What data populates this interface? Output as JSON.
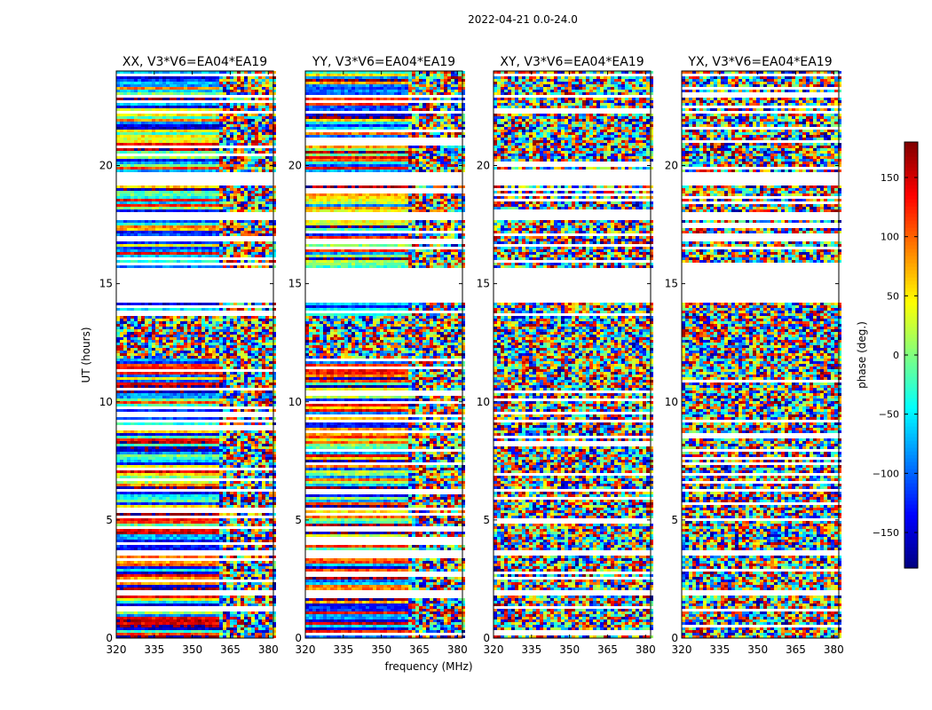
{
  "figure": {
    "suptitle": "2022-04-21 0.0-24.0",
    "ylabel": "UT (hours)",
    "xlabel": "frequency (MHz)"
  },
  "chart_data": {
    "type": "heatmap",
    "x_axis": {
      "label": "frequency (MHz)",
      "range": [
        320,
        382
      ],
      "ticks": [
        320,
        335,
        350,
        365,
        380
      ]
    },
    "y_axis": {
      "label": "UT (hours)",
      "range": [
        0,
        24
      ],
      "ticks": [
        0,
        5,
        10,
        15,
        20
      ]
    },
    "panels": [
      {
        "title": "XX, V3*V6=EA04*EA19"
      },
      {
        "title": "YY, V3*V6=EA04*EA19"
      },
      {
        "title": "XY, V3*V6=EA04*EA19"
      },
      {
        "title": "YX, V3*V6=EA04*EA19"
      }
    ],
    "colorbar": {
      "label": "phase (deg.)",
      "range": [
        -180,
        180
      ],
      "ticks": [
        -150,
        -100,
        -50,
        0,
        50,
        100,
        150
      ],
      "colormap": "jet",
      "colors": [
        "#00007f",
        "#0000ff",
        "#007fff",
        "#00ffff",
        "#7fff7f",
        "#ffff00",
        "#ff7f00",
        "#ff0000",
        "#7f0000"
      ]
    },
    "blank_time_ranges": [
      [
        1.9,
        2.05
      ],
      [
        3.55,
        3.75
      ],
      [
        6.2,
        6.35
      ],
      [
        14.3,
        15.7
      ],
      [
        17.75,
        18.1
      ],
      [
        19.2,
        19.75
      ],
      [
        22.2,
        22.4
      ],
      [
        22.9,
        23.05
      ]
    ],
    "dense_time_ranges": [
      [
        11.9,
        13.7
      ]
    ]
  }
}
